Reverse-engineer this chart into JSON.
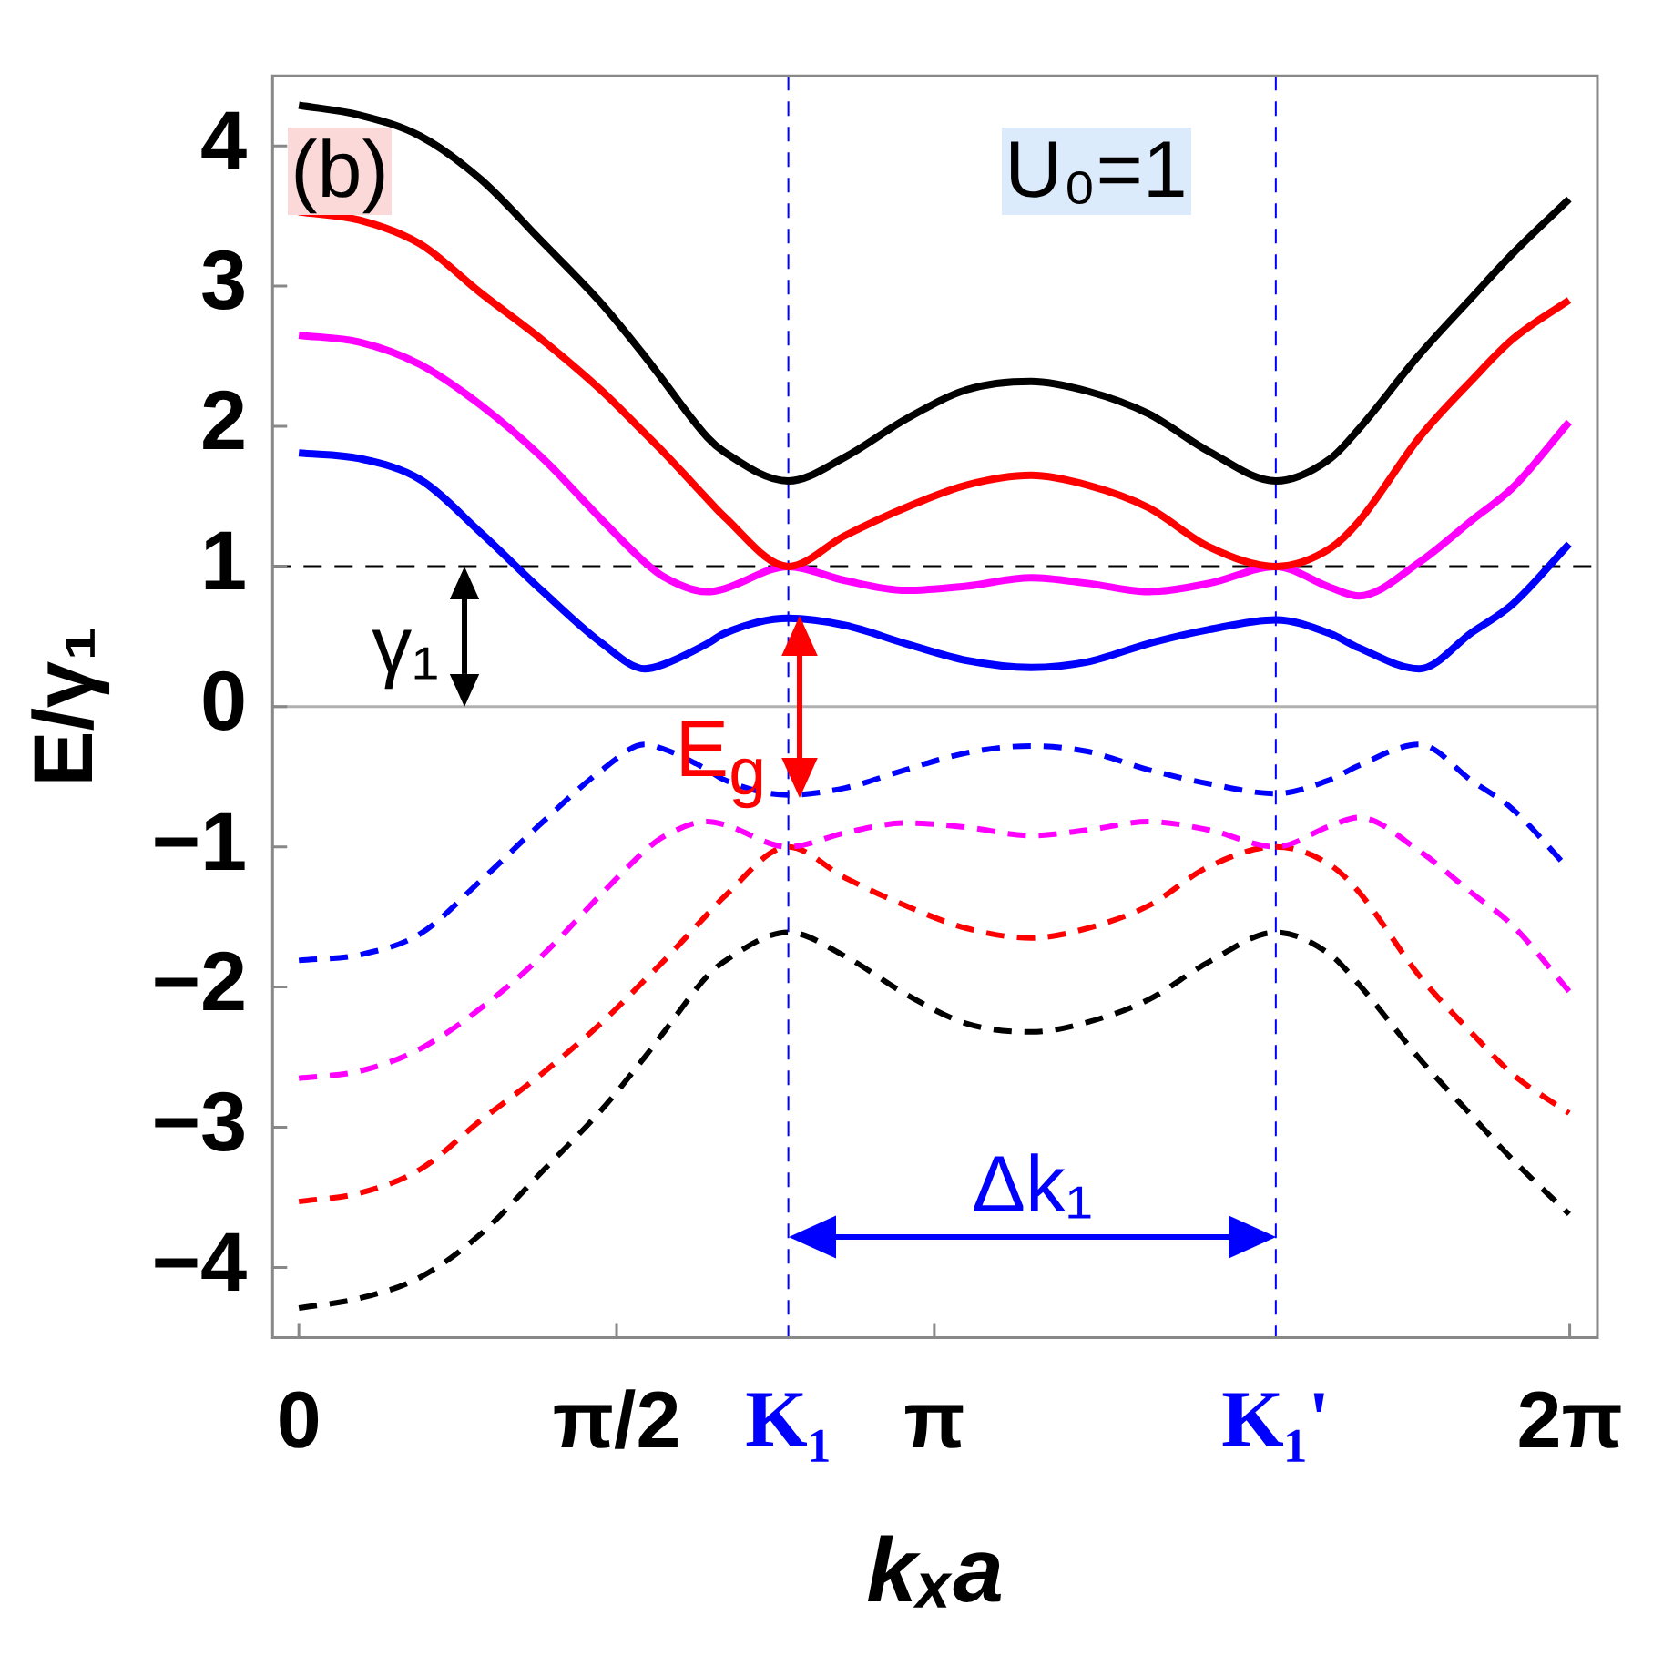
{
  "chart_data": {
    "type": "line",
    "xlabel": "kₓa",
    "ylabel": "E/γ₁",
    "grid": false,
    "legend": false,
    "marker": "none",
    "x": [
      0,
      0.3,
      0.6,
      0.9,
      1.2,
      1.5,
      1.71,
      1.8,
      2.02,
      2.1,
      2.42,
      2.7,
      3.0,
      3.3,
      3.62,
      3.9,
      4.2,
      4.5,
      4.83,
      5.1,
      5.24,
      5.54,
      5.8,
      6.0,
      6.28
    ],
    "xlim": [
      -0.13,
      6.42
    ],
    "ylim": [
      -4.5,
      4.5
    ],
    "xticks": [
      {
        "value": 0,
        "label": "0"
      },
      {
        "value": 1.5708,
        "label": "π/2"
      },
      {
        "value": 3.1416,
        "label": "π"
      },
      {
        "value": 6.2832,
        "label": "2π"
      }
    ],
    "yticks": [
      {
        "value": -4,
        "label": "−4"
      },
      {
        "value": -3,
        "label": "−3"
      },
      {
        "value": -2,
        "label": "−2"
      },
      {
        "value": -1,
        "label": "−1"
      },
      0,
      1,
      2,
      3,
      4
    ],
    "series": [
      {
        "color": "#000000",
        "line_style": "solid",
        "values": [
          4.29,
          4.22,
          4.07,
          3.76,
          3.32,
          2.87,
          2.5,
          2.33,
          1.92,
          1.82,
          1.61,
          1.78,
          2.05,
          2.26,
          2.32,
          2.25,
          2.09,
          1.82,
          1.61,
          1.77,
          1.98,
          2.51,
          2.92,
          3.23,
          3.62
        ]
      },
      {
        "color": "#ff0000",
        "line_style": "solid",
        "values": [
          3.53,
          3.47,
          3.3,
          2.95,
          2.62,
          2.25,
          1.95,
          1.82,
          1.48,
          1.36,
          1.0,
          1.22,
          1.42,
          1.58,
          1.65,
          1.58,
          1.42,
          1.14,
          1.0,
          1.13,
          1.32,
          1.92,
          2.33,
          2.62,
          2.9
        ]
      },
      {
        "color": "#ff00ff",
        "line_style": "solid",
        "values": [
          2.65,
          2.6,
          2.44,
          2.15,
          1.78,
          1.33,
          1.03,
          0.93,
          0.82,
          0.84,
          1.0,
          0.9,
          0.83,
          0.86,
          0.92,
          0.88,
          0.82,
          0.88,
          1.0,
          0.85,
          0.79,
          1.03,
          1.33,
          1.56,
          2.03
        ]
      },
      {
        "color": "#0000ff",
        "line_style": "solid",
        "values": [
          1.81,
          1.77,
          1.62,
          1.24,
          0.83,
          0.45,
          0.27,
          0.3,
          0.45,
          0.52,
          0.63,
          0.58,
          0.45,
          0.33,
          0.28,
          0.32,
          0.45,
          0.55,
          0.62,
          0.52,
          0.42,
          0.27,
          0.53,
          0.73,
          1.16
        ]
      },
      {
        "color": "#0000ff",
        "line_style": "dashed",
        "values": [
          -1.81,
          -1.77,
          -1.62,
          -1.24,
          -0.83,
          -0.45,
          -0.27,
          -0.3,
          -0.45,
          -0.52,
          -0.63,
          -0.58,
          -0.45,
          -0.33,
          -0.28,
          -0.32,
          -0.45,
          -0.55,
          -0.62,
          -0.52,
          -0.42,
          -0.27,
          -0.53,
          -0.73,
          -1.16
        ]
      },
      {
        "color": "#ff00ff",
        "line_style": "dashed",
        "values": [
          -2.65,
          -2.6,
          -2.44,
          -2.15,
          -1.78,
          -1.33,
          -1.03,
          -0.93,
          -0.82,
          -0.84,
          -1.0,
          -0.9,
          -0.83,
          -0.86,
          -0.92,
          -0.88,
          -0.82,
          -0.88,
          -1.0,
          -0.85,
          -0.79,
          -1.03,
          -1.33,
          -1.56,
          -2.03
        ]
      },
      {
        "color": "#ff0000",
        "line_style": "dashed",
        "values": [
          -3.53,
          -3.47,
          -3.3,
          -2.95,
          -2.62,
          -2.25,
          -1.95,
          -1.82,
          -1.48,
          -1.36,
          -1.0,
          -1.22,
          -1.42,
          -1.58,
          -1.65,
          -1.58,
          -1.42,
          -1.14,
          -1.0,
          -1.13,
          -1.32,
          -1.92,
          -2.33,
          -2.62,
          -2.9
        ]
      },
      {
        "color": "#000000",
        "line_style": "dashed",
        "values": [
          -4.29,
          -4.22,
          -4.07,
          -3.76,
          -3.32,
          -2.87,
          -2.5,
          -2.33,
          -1.92,
          -1.82,
          -1.61,
          -1.78,
          -2.05,
          -2.26,
          -2.32,
          -2.25,
          -2.09,
          -1.82,
          -1.61,
          -1.77,
          -1.98,
          -2.51,
          -2.92,
          -3.23,
          -3.62
        ]
      }
    ],
    "ref_lines": [
      {
        "axis": "y",
        "value": 0,
        "color": "#b0b0b0",
        "line_style": "solid"
      },
      {
        "axis": "y",
        "value": 1,
        "color": "#000000",
        "line_style": "dashed"
      },
      {
        "axis": "x",
        "value": 2.42,
        "label": "K₁",
        "color": "#0000ff",
        "line_style": "dashed"
      },
      {
        "axis": "x",
        "value": 4.83,
        "label": "K₁'",
        "color": "#0000ff",
        "line_style": "dashed"
      }
    ],
    "annotations": [
      "(b)",
      "U₀=1",
      "γ₁",
      "E$_{g}$",
      "Δk₁"
    ]
  }
}
